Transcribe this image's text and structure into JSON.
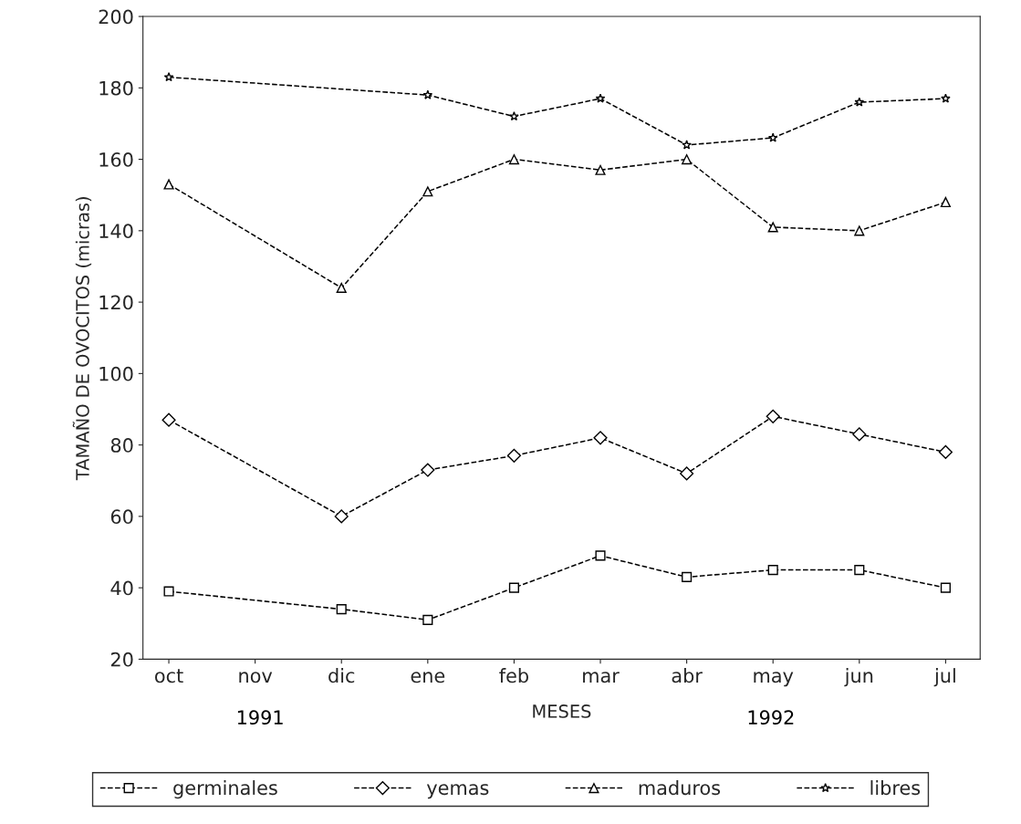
{
  "chart_data": {
    "type": "line",
    "categories": [
      "oct",
      "nov",
      "dic",
      "ene",
      "feb",
      "mar",
      "abr",
      "may",
      "jun",
      "jul"
    ],
    "xlabel": "MESES",
    "ylabel": "TAMAÑO DE OVOCITOS (micras)",
    "ylim": [
      20,
      200
    ],
    "yticks": [
      20,
      40,
      60,
      80,
      100,
      120,
      140,
      160,
      180,
      200
    ],
    "grid": false,
    "legend": "bottom",
    "line_style": "dashed",
    "annotations": [
      "1991",
      "1992"
    ],
    "series": [
      {
        "name": "germinales",
        "color": "#000000",
        "marker": "square",
        "values": [
          39,
          null,
          34,
          31,
          40,
          49,
          43,
          45,
          45,
          40
        ]
      },
      {
        "name": "yemas",
        "color": "#000000",
        "marker": "diamond",
        "values": [
          87,
          null,
          60,
          73,
          77,
          82,
          72,
          88,
          83,
          78
        ]
      },
      {
        "name": "maduros",
        "color": "#000000",
        "marker": "triangle",
        "values": [
          153,
          null,
          124,
          151,
          160,
          157,
          160,
          141,
          140,
          148
        ]
      },
      {
        "name": "libres",
        "color": "#000000",
        "marker": "star",
        "values": [
          183,
          null,
          null,
          178,
          172,
          177,
          164,
          166,
          176,
          177
        ]
      }
    ]
  }
}
